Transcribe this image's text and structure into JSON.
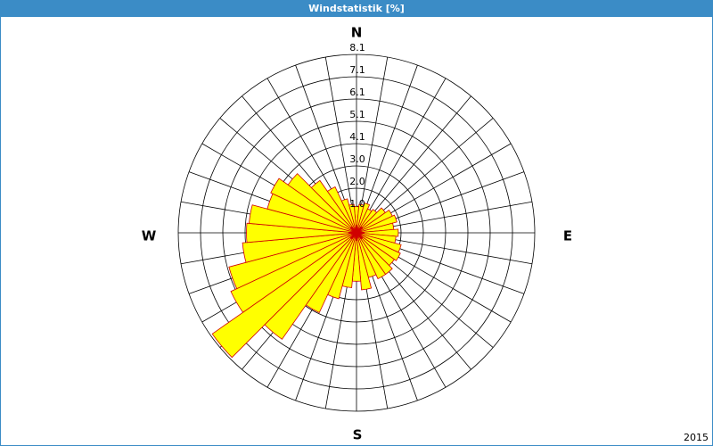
{
  "chart_data": {
    "type": "rose",
    "title": "Windstatistik [%]",
    "directions": [
      "N",
      "E",
      "S",
      "W"
    ],
    "values": [
      1.2,
      1.3,
      1.4,
      1.2,
      1.3,
      1.6,
      1.8,
      1.9,
      1.7,
      1.9,
      1.8,
      2.1,
      2.2,
      2.1,
      2.3,
      2.3,
      2.1,
      2.6,
      2.2,
      2.5,
      3.1,
      4.0,
      5.9,
      8.0,
      6.3,
      6.0,
      5.2,
      5.0,
      4.9,
      4.2,
      4.3,
      3.8,
      2.9,
      2.3,
      1.6,
      1.3
    ],
    "color": "#ffff00",
    "edge_color": "#d00000",
    "rlim": [
      0,
      8.1
    ],
    "rticks": [
      {
        "value": 1.0125,
        "label": "1.0"
      },
      {
        "value": 2.025,
        "label": "2.0"
      },
      {
        "value": 3.0375,
        "label": "3.0"
      },
      {
        "value": 4.05,
        "label": "4.1"
      },
      {
        "value": 5.0625,
        "label": "5.1"
      },
      {
        "value": 6.075,
        "label": "6.1"
      },
      {
        "value": 7.0875,
        "label": "7.1"
      },
      {
        "value": 8.1,
        "label": "8.1"
      }
    ],
    "footnote": "2015"
  }
}
